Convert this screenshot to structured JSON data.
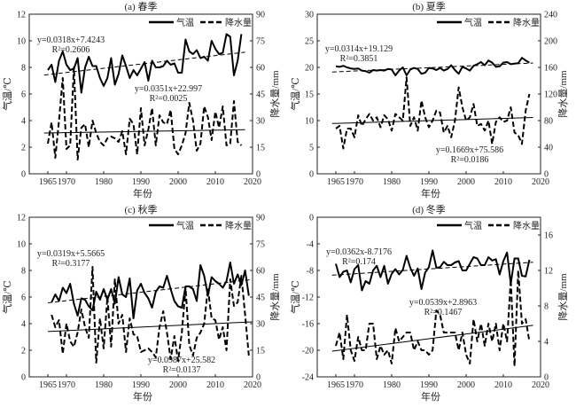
{
  "chart_data": [
    {
      "type": "line",
      "title": "(a) 春季",
      "xlabel": "年份",
      "ylabel": "气温/℃",
      "ylabel2": "降水量/mm",
      "xlim": [
        1960,
        2020
      ],
      "xticks": [
        1965,
        1970,
        1980,
        1990,
        2000,
        2010,
        2020
      ],
      "ylim": [
        0,
        12
      ],
      "yticks": [
        0,
        2,
        4,
        6,
        8,
        10,
        12
      ],
      "ylim2": [
        0,
        90
      ],
      "yticks2": [
        0,
        15,
        30,
        45,
        60,
        75,
        90
      ],
      "legend": {
        "position": "top-right",
        "temp": "气温",
        "precip": "降水量"
      },
      "start_year": 1965,
      "series": [
        {
          "name": "气温",
          "axis": "left",
          "style": "solid",
          "values": [
            7.8,
            8.2,
            6.9,
            8.5,
            9.2,
            8.2,
            7.8,
            7.9,
            8.7,
            6.1,
            8.0,
            8.8,
            8.1,
            8.1,
            7.2,
            6.6,
            7.2,
            8.7,
            6.7,
            7.5,
            8.9,
            8.1,
            7.2,
            7.8,
            7.4,
            7.9,
            8.4,
            7.0,
            8.5,
            8.0,
            8.0,
            8.1,
            8.5,
            8.2,
            8.3,
            7.6,
            7.6,
            10.1,
            9.2,
            9.0,
            9.3,
            8.7,
            8.8,
            8.5,
            10.0,
            9.4,
            9.0,
            9.1,
            10.5,
            10.3,
            7.4,
            8.5,
            10.5
          ]
        },
        {
          "name": "降水量",
          "axis": "right",
          "style": "dashed",
          "values": [
            17,
            29,
            9,
            30,
            54,
            14,
            16,
            60,
            8,
            26,
            28,
            15,
            30,
            23,
            18,
            16,
            20,
            21,
            20,
            18,
            24,
            11,
            31,
            28,
            11,
            37,
            16,
            25,
            37,
            16,
            33,
            29,
            28,
            36,
            14,
            11,
            16,
            23,
            40,
            30,
            13,
            17,
            38,
            32,
            19,
            35,
            26,
            38,
            16,
            17,
            41,
            18,
            16
          ]
        }
      ],
      "trends": [
        {
          "axis": "left",
          "equation": "y=0.0318x+7.4243",
          "r2": "R²=0.2606",
          "slope": 0.0318,
          "intercept": 7.4243
        },
        {
          "axis": "right",
          "equation": "y=0.0351x+22.997",
          "r2": "R²=0.0025",
          "slope": 0.0351,
          "intercept": 22.997
        }
      ]
    },
    {
      "type": "line",
      "title": "(b) 夏季",
      "xlabel": "年份",
      "ylabel": "气温/℃",
      "ylabel2": "降水量/mm",
      "xlim": [
        1960,
        2020
      ],
      "xticks": [
        1965,
        1970,
        1980,
        1990,
        2000,
        2010,
        2020
      ],
      "ylim": [
        0,
        30
      ],
      "yticks": [
        0,
        5,
        10,
        15,
        20,
        25,
        30
      ],
      "ylim2": [
        0,
        240
      ],
      "yticks2": [
        0,
        40,
        80,
        120,
        160,
        200,
        240
      ],
      "legend": {
        "position": "top-right",
        "temp": "气温",
        "precip": "降水量"
      },
      "start_year": 1965,
      "series": [
        {
          "name": "气温",
          "axis": "left",
          "style": "solid",
          "values": [
            20.2,
            20.1,
            20.3,
            20.0,
            19.8,
            19.7,
            19.8,
            19.4,
            19.3,
            19.0,
            19.5,
            19.4,
            19.5,
            19.4,
            19.7,
            19.6,
            18.5,
            19.4,
            20.0,
            18.5,
            19.6,
            19.9,
            19.7,
            18.8,
            19.0,
            19.9,
            19.8,
            19.5,
            19.9,
            19.4,
            19.7,
            20.4,
            19.5,
            18.8,
            20.1,
            19.8,
            19.4,
            20.3,
            20.6,
            21.0,
            20.4,
            21.3,
            20.9,
            20.1,
            20.2,
            20.9,
            21.0,
            20.6,
            20.7,
            20.8,
            21.8,
            21.3,
            20.9
          ]
        },
        {
          "name": "降水量",
          "axis": "right",
          "style": "dashed",
          "values": [
            68,
            72,
            38,
            68,
            68,
            55,
            88,
            72,
            82,
            90,
            80,
            85,
            70,
            88,
            82,
            65,
            90,
            85,
            80,
            145,
            72,
            85,
            65,
            110,
            85,
            70,
            80,
            95,
            92,
            62,
            72,
            55,
            80,
            130,
            100,
            80,
            85,
            105,
            72,
            75,
            65,
            80,
            45,
            78,
            85,
            78,
            80,
            100,
            62,
            58,
            45,
            95,
            120
          ]
        }
      ],
      "trends": [
        {
          "axis": "left",
          "equation": "y=0.0314x+19.129",
          "r2": "R²=0.3851",
          "slope": 0.0314,
          "intercept": 19.129
        },
        {
          "axis": "right",
          "equation": "y=0.1669x+75.586",
          "r2": "R²=0.0186",
          "slope": 0.1669,
          "intercept": 75.586
        }
      ]
    },
    {
      "type": "line",
      "title": "(c) 秋季",
      "xlabel": "年份",
      "ylabel": "气温/℃",
      "ylabel2": "降水量/mm",
      "xlim": [
        1960,
        2020
      ],
      "xticks": [
        1965,
        1970,
        1980,
        1990,
        2000,
        2010,
        2020
      ],
      "ylim": [
        0,
        12
      ],
      "yticks": [
        0,
        2,
        4,
        6,
        8,
        10,
        12
      ],
      "ylim2": [
        0,
        90
      ],
      "yticks2": [
        0,
        15,
        30,
        45,
        60,
        75,
        90
      ],
      "legend": {
        "position": "top-right",
        "temp": "气温",
        "precip": "降水量"
      },
      "start_year": 1966,
      "series": [
        {
          "name": "气温",
          "axis": "left",
          "style": "solid",
          "values": [
            5.6,
            6.2,
            5.7,
            6.7,
            6.3,
            7.0,
            5.5,
            4.6,
            5.9,
            5.8,
            5.3,
            5.0,
            6.4,
            5.8,
            6.6,
            5.8,
            6.6,
            5.5,
            7.5,
            6.2,
            6.0,
            7.4,
            4.4,
            6.5,
            7.0,
            6.3,
            5.9,
            5.2,
            6.4,
            6.8,
            6.7,
            7.6,
            6.6,
            5.7,
            5.3,
            5.2,
            6.8,
            6.8,
            6.6,
            5.7,
            8.4,
            7.6,
            6.1,
            7.5,
            7.2,
            7.0,
            6.7,
            7.2,
            8.6,
            7.0,
            7.7,
            6.9,
            8.0,
            6.1
          ]
        },
        {
          "name": "降水量",
          "axis": "right",
          "style": "dashed",
          "values": [
            35,
            28,
            32,
            13,
            30,
            20,
            17,
            25,
            38,
            28,
            22,
            62,
            8,
            33,
            16,
            45,
            17,
            55,
            30,
            35,
            14,
            33,
            24,
            23,
            14,
            15,
            16,
            14,
            11,
            28,
            37,
            25,
            10,
            23,
            9,
            25,
            50,
            18,
            12,
            22,
            25,
            30,
            50,
            33,
            32,
            21,
            28,
            15,
            55,
            40,
            42,
            57,
            35,
            12
          ]
        }
      ],
      "trends": [
        {
          "axis": "left",
          "equation": "y=0.0319x+5.5665",
          "r2": "R²=0.3177",
          "slope": 0.0319,
          "intercept": 5.5665
        },
        {
          "axis": "right",
          "equation": "y=0.0987x+25.582",
          "r2": "R²=0.0137",
          "slope": 0.0987,
          "intercept": 25.582
        }
      ]
    },
    {
      "type": "line",
      "title": "(d) 冬季",
      "xlabel": "年份",
      "ylabel": "气温/℃",
      "ylabel2": "降水量/mm",
      "xlim": [
        1960,
        2020
      ],
      "xticks": [
        1965,
        1970,
        1980,
        1990,
        2000,
        2010,
        2020
      ],
      "ylim": [
        -24,
        0
      ],
      "yticks": [
        -24,
        -20,
        -16,
        -12,
        -8,
        -4,
        0
      ],
      "ylim2": [
        0,
        18
      ],
      "yticks2": [
        0,
        4,
        8,
        12,
        16
      ],
      "legend": {
        "position": "top-right",
        "temp": "气温",
        "precip": "降水量"
      },
      "start_year": 1965,
      "series": [
        {
          "name": "气温",
          "axis": "left",
          "style": "solid",
          "values": [
            -7.0,
            -9.0,
            -8.2,
            -8.0,
            -9.8,
            -7.8,
            -7.2,
            -11.0,
            -9.6,
            -10.0,
            -8.0,
            -7.3,
            -9.0,
            -7.3,
            -10.0,
            -8.5,
            -7.8,
            -8.6,
            -7.9,
            -5.8,
            -7.6,
            -8.8,
            -7.7,
            -10.8,
            -8.3,
            -7.5,
            -5.0,
            -7.6,
            -7.5,
            -6.7,
            -7.2,
            -7.2,
            -6.8,
            -6.6,
            -8.0,
            -8.0,
            -7.0,
            -6.0,
            -6.2,
            -7.2,
            -7.2,
            -6.0,
            -6.5,
            -6.3,
            -8.6,
            -6.6,
            -5.3,
            -10.0,
            -6.2,
            -6.2,
            -8.8,
            -8.9,
            -6.4
          ]
        },
        {
          "name": "降水量",
          "axis": "right",
          "style": "dashed",
          "values": [
            3.5,
            5,
            2,
            7,
            3,
            1.8,
            4.5,
            3,
            3,
            6,
            6,
            2,
            3.5,
            2.5,
            3,
            1.5,
            5.5,
            4,
            4.5,
            5,
            5,
            3,
            4,
            3,
            3,
            2.5,
            3,
            7.5,
            7,
            5,
            5,
            5,
            5,
            3,
            5,
            2.5,
            1.5,
            6.5,
            4,
            6,
            3.5,
            6,
            4,
            6,
            3,
            6,
            4,
            11,
            1.2,
            12,
            6,
            6.5,
            4
          ]
        }
      ],
      "trends": [
        {
          "axis": "left",
          "equation": "y=0.0362x-8.7176",
          "r2": "R²=0.174",
          "slope": 0.0362,
          "intercept": -8.7176
        },
        {
          "axis": "right",
          "equation": "y=0.0539x+2.8963",
          "r2": "R²=0.1467",
          "slope": 0.0539,
          "intercept": 2.8963
        }
      ]
    }
  ]
}
